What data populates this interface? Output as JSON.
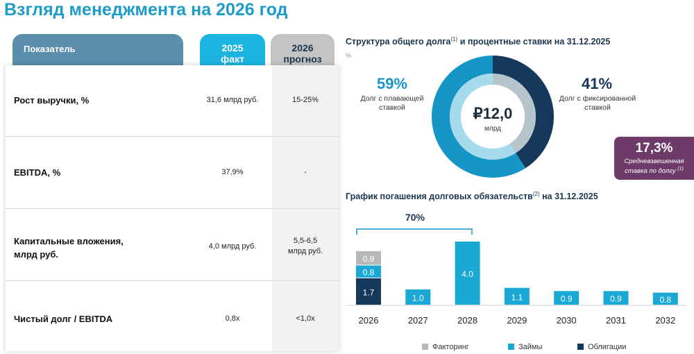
{
  "title": "Взгляд менеджмента на 2026 год",
  "table": {
    "header_indicator": "Показатель",
    "header_2025_line1": "2025",
    "header_2025_line2": "факт",
    "header_2026_line1": "2026",
    "header_2026_line2": "прогноз",
    "rows": [
      {
        "label_line1": "Рост выручки, %",
        "label_line2": "",
        "fact": "31,6 млрд руб.",
        "forecast_line1": "15-25%",
        "forecast_line2": ""
      },
      {
        "label_line1": "EBITDA, %",
        "label_line2": "",
        "fact": "37,9%",
        "forecast_line1": "-",
        "forecast_line2": ""
      },
      {
        "label_line1": "Капитальные вложения,",
        "label_line2": "млрд руб.",
        "fact": "4,0 млрд руб.",
        "forecast_line1": "5,5-6,5",
        "forecast_line2": "млрд руб."
      },
      {
        "label_line1": "Чистый долг / EBITDA",
        "label_line2": "",
        "fact": "0,8х",
        "forecast_line1": "<1,0х",
        "forecast_line2": ""
      }
    ]
  },
  "debt_structure": {
    "title": "Структура общего долга",
    "title_sup": "(1)",
    "title_rest": " и процентные ставки на 31.12.2025",
    "pct_mark": "%",
    "center_value": "₽12,0",
    "center_unit": "млрд",
    "floating_pct": "59%",
    "floating_label_line1": "Долг с плавающей",
    "floating_label_line2": "ставкой",
    "fixed_pct": "41%",
    "fixed_label_line1": "Долг с фиксированной",
    "fixed_label_line2": "ставкой",
    "weighted_rate": "17,3%",
    "weighted_rate_label_line1": "Средневзвешенная",
    "weighted_rate_label_line2": "ставка по долгу",
    "weighted_rate_sup": "(1)",
    "donut": {
      "outer": [
        {
          "name": "floating",
          "value": 59,
          "color": "#1596c6"
        },
        {
          "name": "fixed",
          "value": 41,
          "color": "#16385a"
        }
      ],
      "inner": [
        {
          "name": "floating-inner",
          "value": 59,
          "color": "#a6dbed"
        },
        {
          "name": "fixed-inner",
          "value": 41,
          "color": "#b6c4cc"
        }
      ]
    }
  },
  "repayment": {
    "title": "График погашения долговых обязательств",
    "title_sup": "(2)",
    "title_rest": " на 31.12.2025",
    "bracket_label": "70%"
  },
  "chart_data": {
    "type": "bar",
    "stacked": true,
    "categories": [
      "2026",
      "2027",
      "2028",
      "2029",
      "2030",
      "2031",
      "2032"
    ],
    "series": [
      {
        "name": "Облигации",
        "color": "#16385a",
        "values": [
          1.7,
          0,
          0,
          0,
          0,
          0,
          0
        ]
      },
      {
        "name": "Займы",
        "color": "#1aa8d4",
        "values": [
          0.8,
          1.0,
          4.0,
          1.1,
          0.9,
          0.9,
          0.8
        ]
      },
      {
        "name": "Факторинг",
        "color": "#b8b8b8",
        "values": [
          0.9,
          0,
          0,
          0,
          0,
          0,
          0
        ]
      }
    ],
    "value_labels": [
      [
        "1.7",
        "0.8",
        "0.9"
      ],
      [
        "",
        "1.0",
        ""
      ],
      [
        "",
        "4.0",
        ""
      ],
      [
        "",
        "1.1",
        ""
      ],
      [
        "",
        "0.9",
        ""
      ],
      [
        "",
        "0.9",
        ""
      ],
      [
        "",
        "0.8",
        ""
      ]
    ],
    "legend": [
      "Факторинг",
      "Займы",
      "Облигации"
    ],
    "legend_position": "bottom"
  }
}
